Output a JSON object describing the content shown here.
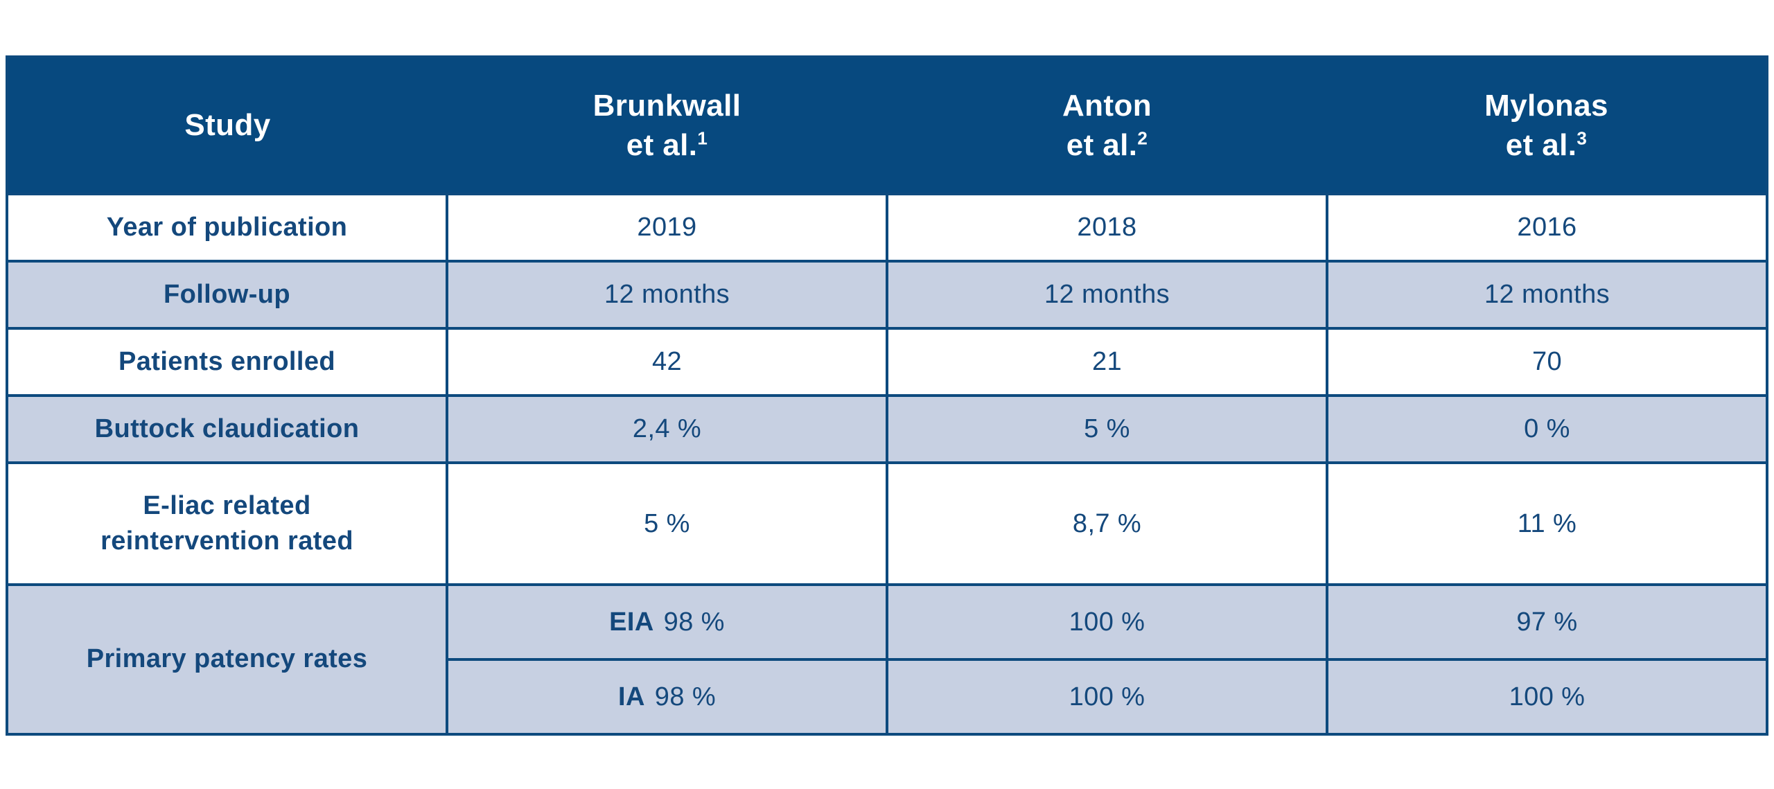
{
  "colors": {
    "header_bg": "#07497f",
    "row_shade": "#c7d0e2",
    "row_white": "#ffffff",
    "border": "#0d4a7e",
    "text": "#14487c",
    "header_text": "#ffffff",
    "page_bg": "#ffffff"
  },
  "table": {
    "columns": [
      {
        "label": "Study"
      },
      {
        "name": "Brunkwall",
        "etal": "et al.",
        "ref": "1"
      },
      {
        "name": "Anton",
        "etal": "et al.",
        "ref": "2"
      },
      {
        "name": "Mylonas",
        "etal": "et al.",
        "ref": "3"
      }
    ],
    "rows": [
      {
        "label": "Year of publication",
        "values": [
          "2019",
          "2018",
          "2016"
        ]
      },
      {
        "label": "Follow-up",
        "values": [
          "12 months",
          "12 months",
          "12 months"
        ]
      },
      {
        "label": "Patients enrolled",
        "values": [
          "42",
          "21",
          "70"
        ]
      },
      {
        "label": "Buttock claudication",
        "values": [
          "2,4 %",
          "5 %",
          "0 %"
        ]
      },
      {
        "label_lines": [
          "E-liac related",
          "reintervention rated"
        ],
        "values": [
          "5 %",
          "8,7 %",
          "11 %"
        ]
      },
      {
        "label": "Primary patency rates",
        "subrows": [
          {
            "prefix": "EIA",
            "values": [
              "98 %",
              "100 %",
              "97 %"
            ]
          },
          {
            "prefix": "IA",
            "values": [
              "98 %",
              "100 %",
              "100 %"
            ]
          }
        ]
      }
    ]
  },
  "chart_data": {
    "type": "table",
    "title": "Study comparison table",
    "columns": [
      "Study",
      "Brunkwall et al.1",
      "Anton et al.2",
      "Mylonas et al.3"
    ],
    "rows": [
      [
        "Year of publication",
        "2019",
        "2018",
        "2016"
      ],
      [
        "Follow-up",
        "12 months",
        "12 months",
        "12 months"
      ],
      [
        "Patients enrolled",
        "42",
        "21",
        "70"
      ],
      [
        "Buttock claudication",
        "2,4 %",
        "5 %",
        "0 %"
      ],
      [
        "E-liac related reintervention rated",
        "5 %",
        "8,7 %",
        "11 %"
      ],
      [
        "Primary patency rates — EIA",
        "98 %",
        "100 %",
        "97 %"
      ],
      [
        "Primary patency rates — IA",
        "98 %",
        "100 %",
        "100 %"
      ]
    ]
  }
}
